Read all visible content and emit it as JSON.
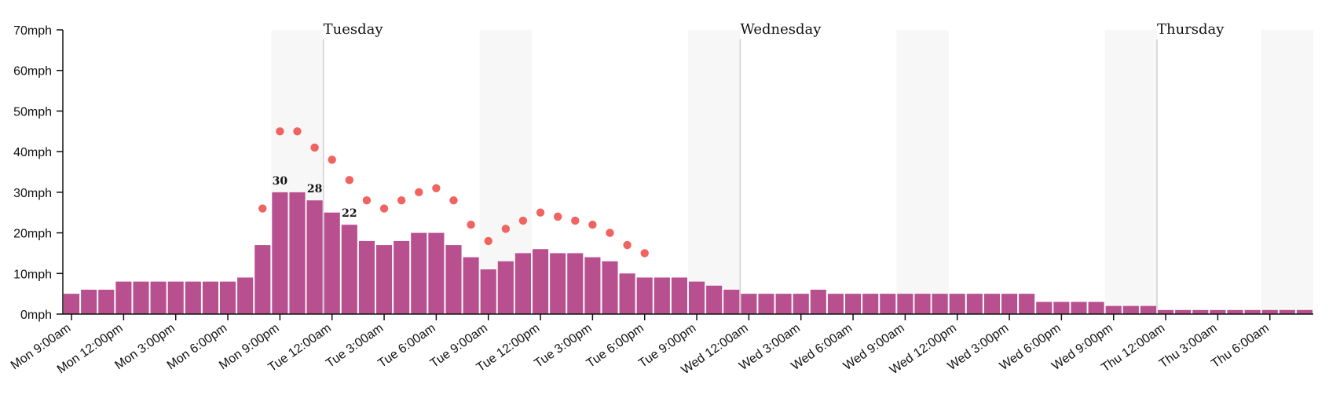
{
  "chart_data": {
    "type": "bar",
    "title": "",
    "xlabel": "",
    "ylabel": "",
    "ylim": [
      0,
      70
    ],
    "y_ticks": [
      "0mph",
      "10mph",
      "20mph",
      "30mph",
      "40mph",
      "50mph",
      "60mph",
      "70mph"
    ],
    "x_tick_labels": [
      "Mon 9:00am",
      "Mon 12:00pm",
      "Mon 3:00pm",
      "Mon 6:00pm",
      "Mon 9:00pm",
      "Tue 12:00am",
      "Tue 3:00am",
      "Tue 6:00am",
      "Tue 9:00am",
      "Tue 12:00pm",
      "Tue 3:00pm",
      "Tue 6:00pm",
      "Tue 9:00pm",
      "Wed 12:00am",
      "Wed 3:00am",
      "Wed 6:00am",
      "Wed 9:00am",
      "Wed 12:00pm",
      "Wed 3:00pm",
      "Wed 6:00pm",
      "Wed 9:00pm",
      "Thu 12:00am",
      "Thu 3:00am",
      "Thu 6:00am"
    ],
    "day_labels": [
      "Tuesday",
      "Wednesday",
      "Thursday"
    ],
    "series": [
      {
        "values": [
          5,
          6,
          6,
          8,
          8,
          8,
          8,
          8,
          8,
          8,
          9,
          17,
          30,
          30,
          28,
          25,
          22,
          18,
          17,
          18,
          20,
          20,
          17,
          14,
          11,
          13,
          15,
          16,
          15,
          15,
          14,
          13,
          10,
          9,
          9,
          9,
          8,
          7,
          6,
          5,
          5,
          5,
          5,
          6,
          5,
          5,
          5,
          5,
          5,
          5,
          5,
          5,
          5,
          5,
          5,
          5,
          3,
          3,
          3,
          3,
          2,
          2,
          2,
          1,
          1,
          1,
          1,
          1,
          1,
          1,
          1,
          1
        ]
      },
      {
        "start_index": 11,
        "values": [
          26,
          45,
          45,
          41,
          38,
          33,
          28,
          26,
          28,
          30,
          31,
          28,
          22,
          18,
          21,
          23,
          25,
          24,
          23,
          22,
          20,
          17,
          15
        ]
      }
    ],
    "data_labels": [
      {
        "index": 12,
        "value": "30"
      },
      {
        "index": 14,
        "value": "28"
      },
      {
        "index": 16,
        "value": "22"
      }
    ],
    "grid": false,
    "legend": "none"
  }
}
